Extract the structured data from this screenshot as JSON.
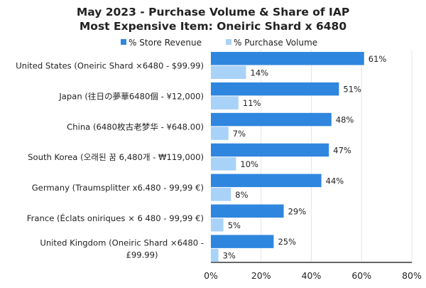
{
  "chart_data": {
    "type": "bar",
    "orientation": "horizontal",
    "title": [
      "May 2023 - Purchase Volume & Share of IAP",
      "Most Expensive Item: Oneiric Shard x 6480"
    ],
    "categories": [
      [
        "United States (Oneiric Shard ×6480 - $99.99)"
      ],
      [
        "Japan (往日の夢華6480個 - ¥12,000)"
      ],
      [
        "China (6480枚古老梦华 - ¥648.00)"
      ],
      [
        "South Korea (오래된 꿈 6,480개 - ₩119,000)"
      ],
      [
        "Germany (Traumsplitter x6.480 - 99,99 €)"
      ],
      [
        "France (Éclats oniriques × 6 480 - 99,99 €)"
      ],
      [
        "United Kingdom (Oneiric Shard ×6480 -",
        "£99.99)"
      ]
    ],
    "series": [
      {
        "name": "% Store Revenue",
        "values": [
          61,
          51,
          48,
          47,
          44,
          29,
          25
        ],
        "color": "#2f86de"
      },
      {
        "name": "% Purchase Volume",
        "values": [
          14,
          11,
          7,
          10,
          8,
          5,
          3
        ],
        "color": "#a9d2f8"
      }
    ],
    "xlim": [
      0,
      80
    ],
    "xticks": [
      "0%",
      "20%",
      "40%",
      "60%",
      "80%"
    ],
    "xlabel": "",
    "ylabel": "",
    "legend": "top",
    "grid": true
  }
}
